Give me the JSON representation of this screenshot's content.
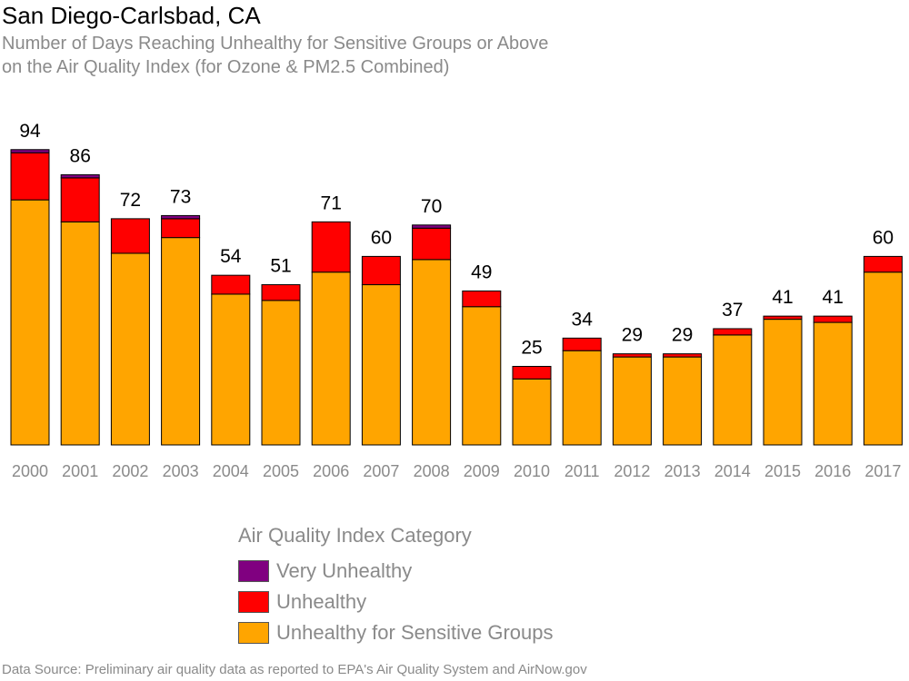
{
  "header": {
    "title": "San Diego-Carlsbad, CA",
    "subtitle_line1": "Number of Days Reaching Unhealthy for Sensitive Groups or Above",
    "subtitle_line2": "on the Air Quality Index (for Ozone & PM2.5 Combined)"
  },
  "legend": {
    "title": "Air Quality Index Category",
    "items": [
      {
        "label": "Very Unhealthy",
        "color": "#800080"
      },
      {
        "label": "Unhealthy",
        "color": "#ff0000"
      },
      {
        "label": "Unhealthy for Sensitive Groups",
        "color": "#ffa500"
      }
    ]
  },
  "footer": "Data Source: Preliminary air quality data as reported to EPA's Air Quality System and AirNow.gov",
  "chart_data": {
    "type": "bar",
    "stacked": true,
    "title": "San Diego-Carlsbad, CA",
    "subtitle": "Number of Days Reaching Unhealthy for Sensitive Groups or Above on the Air Quality Index (for Ozone & PM2.5 Combined)",
    "xlabel": "",
    "ylabel": "",
    "ylim": [
      0,
      94
    ],
    "grid": false,
    "legend_position": "bottom",
    "categories": [
      "2000",
      "2001",
      "2002",
      "2003",
      "2004",
      "2005",
      "2006",
      "2007",
      "2008",
      "2009",
      "2010",
      "2011",
      "2012",
      "2013",
      "2014",
      "2015",
      "2016",
      "2017"
    ],
    "series": [
      {
        "name": "Unhealthy for Sensitive Groups",
        "color": "#ffa500",
        "values": [
          78,
          71,
          61,
          66,
          48,
          46,
          55,
          51,
          59,
          44,
          21,
          30,
          28,
          28,
          35,
          40,
          39,
          55
        ]
      },
      {
        "name": "Unhealthy",
        "color": "#ff0000",
        "values": [
          15,
          14,
          11,
          6,
          6,
          5,
          16,
          9,
          10,
          5,
          4,
          4,
          1,
          1,
          2,
          1,
          2,
          5
        ]
      },
      {
        "name": "Very Unhealthy",
        "color": "#800080",
        "values": [
          1,
          1,
          0,
          1,
          0,
          0,
          0,
          0,
          1,
          0,
          0,
          0,
          0,
          0,
          0,
          0,
          0,
          0
        ]
      }
    ],
    "totals": [
      94,
      86,
      72,
      73,
      54,
      51,
      71,
      60,
      70,
      49,
      25,
      34,
      29,
      29,
      37,
      41,
      41,
      60
    ]
  }
}
